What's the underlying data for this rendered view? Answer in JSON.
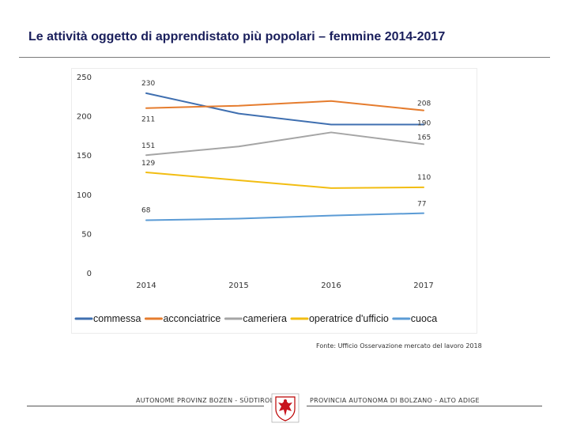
{
  "header": {
    "title": "Le attività oggetto di apprendistato più popolari – femmine 2014-2017"
  },
  "chart_data": {
    "type": "line",
    "title": "",
    "categories": [
      "2014",
      "2015",
      "2016",
      "2017"
    ],
    "ylim": [
      0,
      250
    ],
    "yticks": [
      "0",
      "50",
      "100",
      "150",
      "200",
      "250"
    ],
    "series": [
      {
        "name": "commessa",
        "color": "#3f6fb0",
        "values": [
          230,
          204,
          190,
          190
        ],
        "labels": [
          "230",
          "",
          "",
          "190"
        ]
      },
      {
        "name": "acconciatrice",
        "color": "#e57c2e",
        "values": [
          211,
          214,
          220,
          208
        ],
        "labels": [
          "211",
          "",
          "",
          "208"
        ]
      },
      {
        "name": "cameriera",
        "color": "#a5a5a5",
        "values": [
          151,
          162,
          180,
          165
        ],
        "labels": [
          "151",
          "",
          "",
          "165"
        ]
      },
      {
        "name": "operatrice d'ufficio",
        "color": "#f2bd12",
        "values": [
          129,
          119,
          109,
          110
        ],
        "labels": [
          "129",
          "",
          "",
          "110"
        ]
      },
      {
        "name": "cuoca",
        "color": "#5b9bd5",
        "values": [
          68,
          70,
          74,
          77
        ],
        "labels": [
          "68",
          "",
          "",
          "77"
        ]
      }
    ]
  },
  "source": "Fonte: Ufficio Osservazione mercato del lavoro 2018",
  "footer": {
    "left": "AUTONOME PROVINZ BOZEN - SÜDTIROL",
    "right": "PROVINCIA AUTONOMA DI BOLZANO - ALTO ADIGE"
  }
}
